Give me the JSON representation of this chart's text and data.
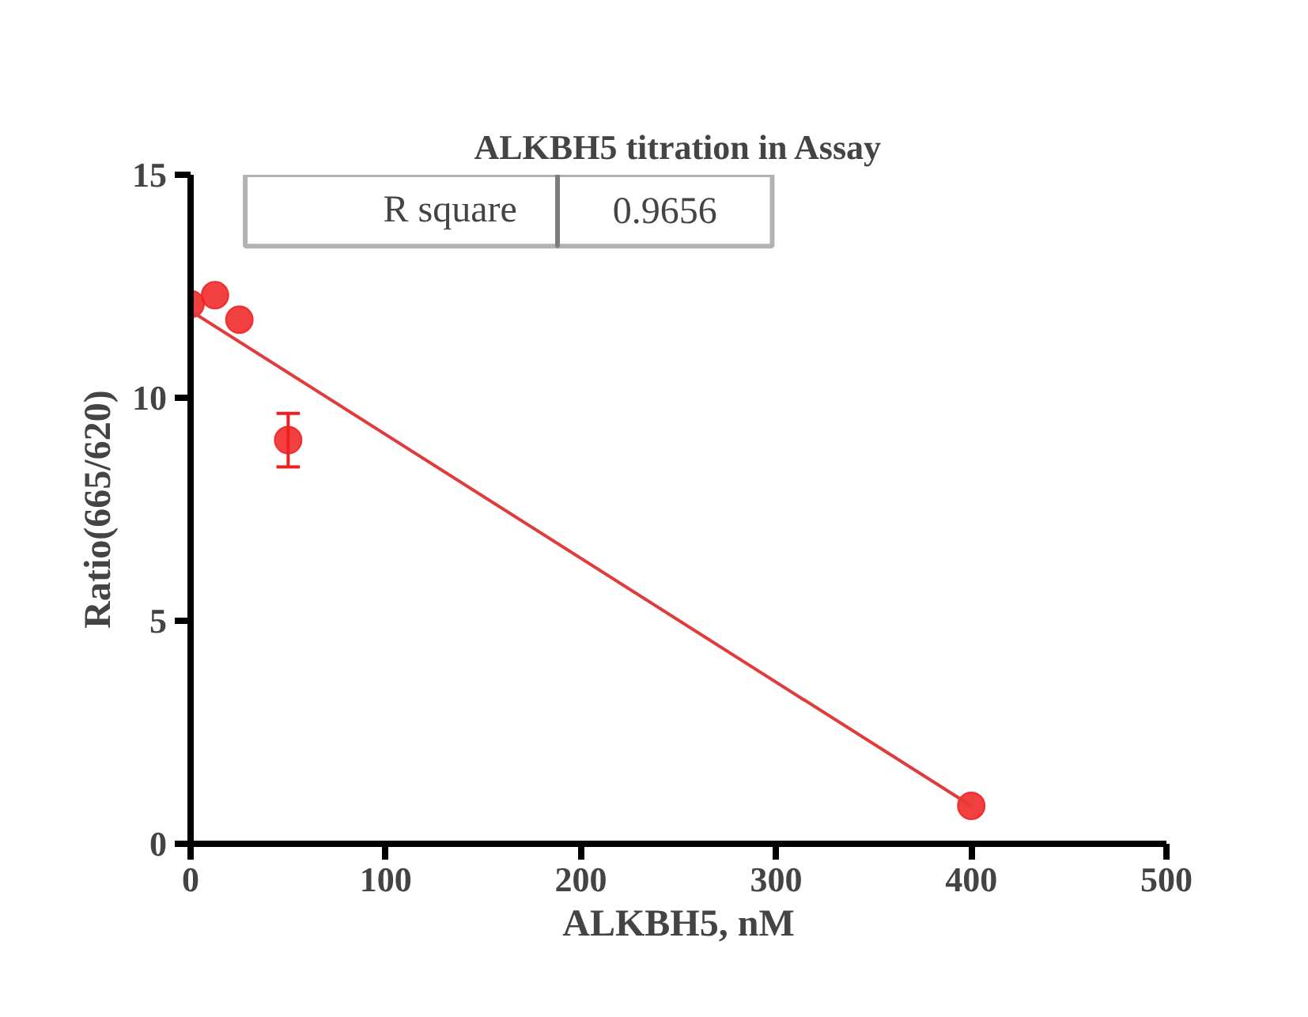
{
  "chart_data": {
    "type": "scatter",
    "title": "ALKBH5 titration in Assay",
    "xlabel": "ALKBH5, nM",
    "ylabel": "Ratio(665/620)",
    "annotations": [
      "R square",
      "0.9656"
    ],
    "xlim": [
      0,
      500
    ],
    "xticks": [
      0,
      100,
      200,
      300,
      400,
      500
    ],
    "ylim": [
      0,
      15
    ],
    "yticks": [
      0,
      5,
      10,
      15
    ],
    "grid": false,
    "series": [
      {
        "marker": "circle",
        "color": "#f01e1e",
        "x": [
          0,
          12.5,
          25,
          50,
          400
        ],
        "values": [
          12.1,
          12.3,
          11.75,
          9.05,
          0.85
        ],
        "errors": [
          null,
          null,
          null,
          [
            8.45,
            9.65
          ],
          null
        ]
      },
      {
        "type": "line",
        "color": "#e03c3c",
        "line_style": "solid",
        "x": [
          0,
          400
        ],
        "values": [
          11.95,
          0.85
        ]
      }
    ]
  }
}
